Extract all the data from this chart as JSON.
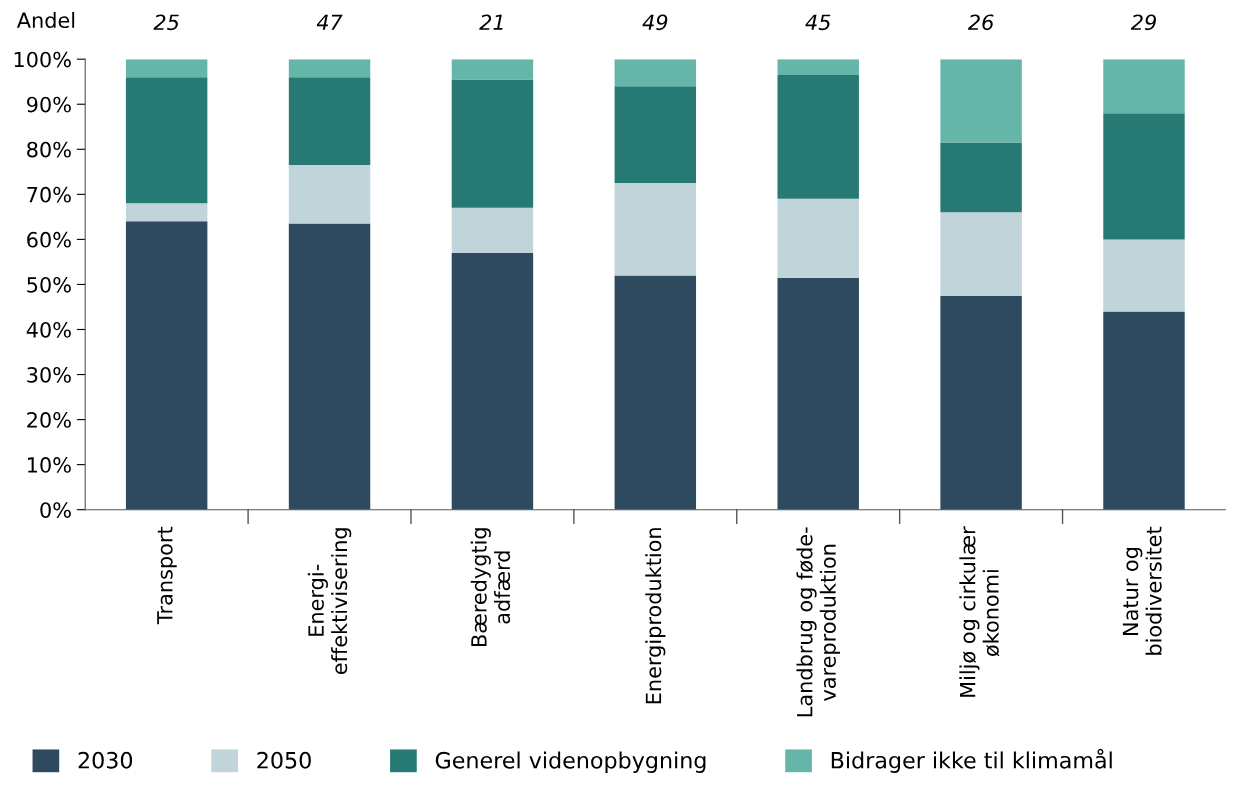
{
  "chart_data": {
    "type": "bar",
    "stacked": true,
    "ylabel": "Andel",
    "categories": [
      "Transport",
      "Energi-\neffektivisering",
      "Bæredygtig\nadfærd",
      "Energiproduktion",
      "Landbrug og føde-\nvareproduktion",
      "Miljø og cirkulær\nøkonomi",
      "Natur og\nbiodiversitet"
    ],
    "series": [
      {
        "name": "2030",
        "color": "#2e4a5f",
        "values": [
          64,
          63.5,
          57,
          52,
          51.5,
          47.5,
          44
        ]
      },
      {
        "name": "2050",
        "color": "#c0d4da",
        "values": [
          4,
          13,
          10,
          20.5,
          17.5,
          18.5,
          16
        ]
      },
      {
        "name": "Generel videnopbygning",
        "color": "#277a74",
        "values": [
          28,
          19.5,
          28.5,
          21.5,
          27.5,
          15.5,
          28
        ]
      },
      {
        "name": "Bidrager ikke til klimamål",
        "color": "#65b5a8",
        "values": [
          4,
          4,
          4.5,
          6,
          3.5,
          18.5,
          12
        ]
      }
    ],
    "ylim": [
      0,
      100
    ],
    "yticks": [
      {
        "value": 0,
        "label": "0%"
      },
      {
        "value": 10,
        "label": "10%"
      },
      {
        "value": 20,
        "label": "20%"
      },
      {
        "value": 30,
        "label": "30%"
      },
      {
        "value": 40,
        "label": "40%"
      },
      {
        "value": 50,
        "label": "50%"
      },
      {
        "value": 60,
        "label": "60%"
      },
      {
        "value": 70,
        "label": "70%"
      },
      {
        "value": 80,
        "label": "80%"
      },
      {
        "value": 90,
        "label": "90%"
      },
      {
        "value": 100,
        "label": "100%"
      }
    ],
    "annotations": [
      {
        "text": "25",
        "x": "Transport",
        "y": 100
      },
      {
        "text": "47",
        "x": "Energi-\neffektivisering",
        "y": 100
      },
      {
        "text": "21",
        "x": "Bæredygtig\nadfærd",
        "y": 100
      },
      {
        "text": "49",
        "x": "Energiproduktion",
        "y": 100
      },
      {
        "text": "45",
        "x": "Landbrug og føde-\nvareproduktion",
        "y": 100
      },
      {
        "text": "26",
        "x": "Miljø og cirkulær\nøkonomi",
        "y": 100
      },
      {
        "text": "29",
        "x": "Natur og\nbiodiversitet",
        "y": 100
      }
    ],
    "grid": false,
    "legend": "bottom"
  }
}
